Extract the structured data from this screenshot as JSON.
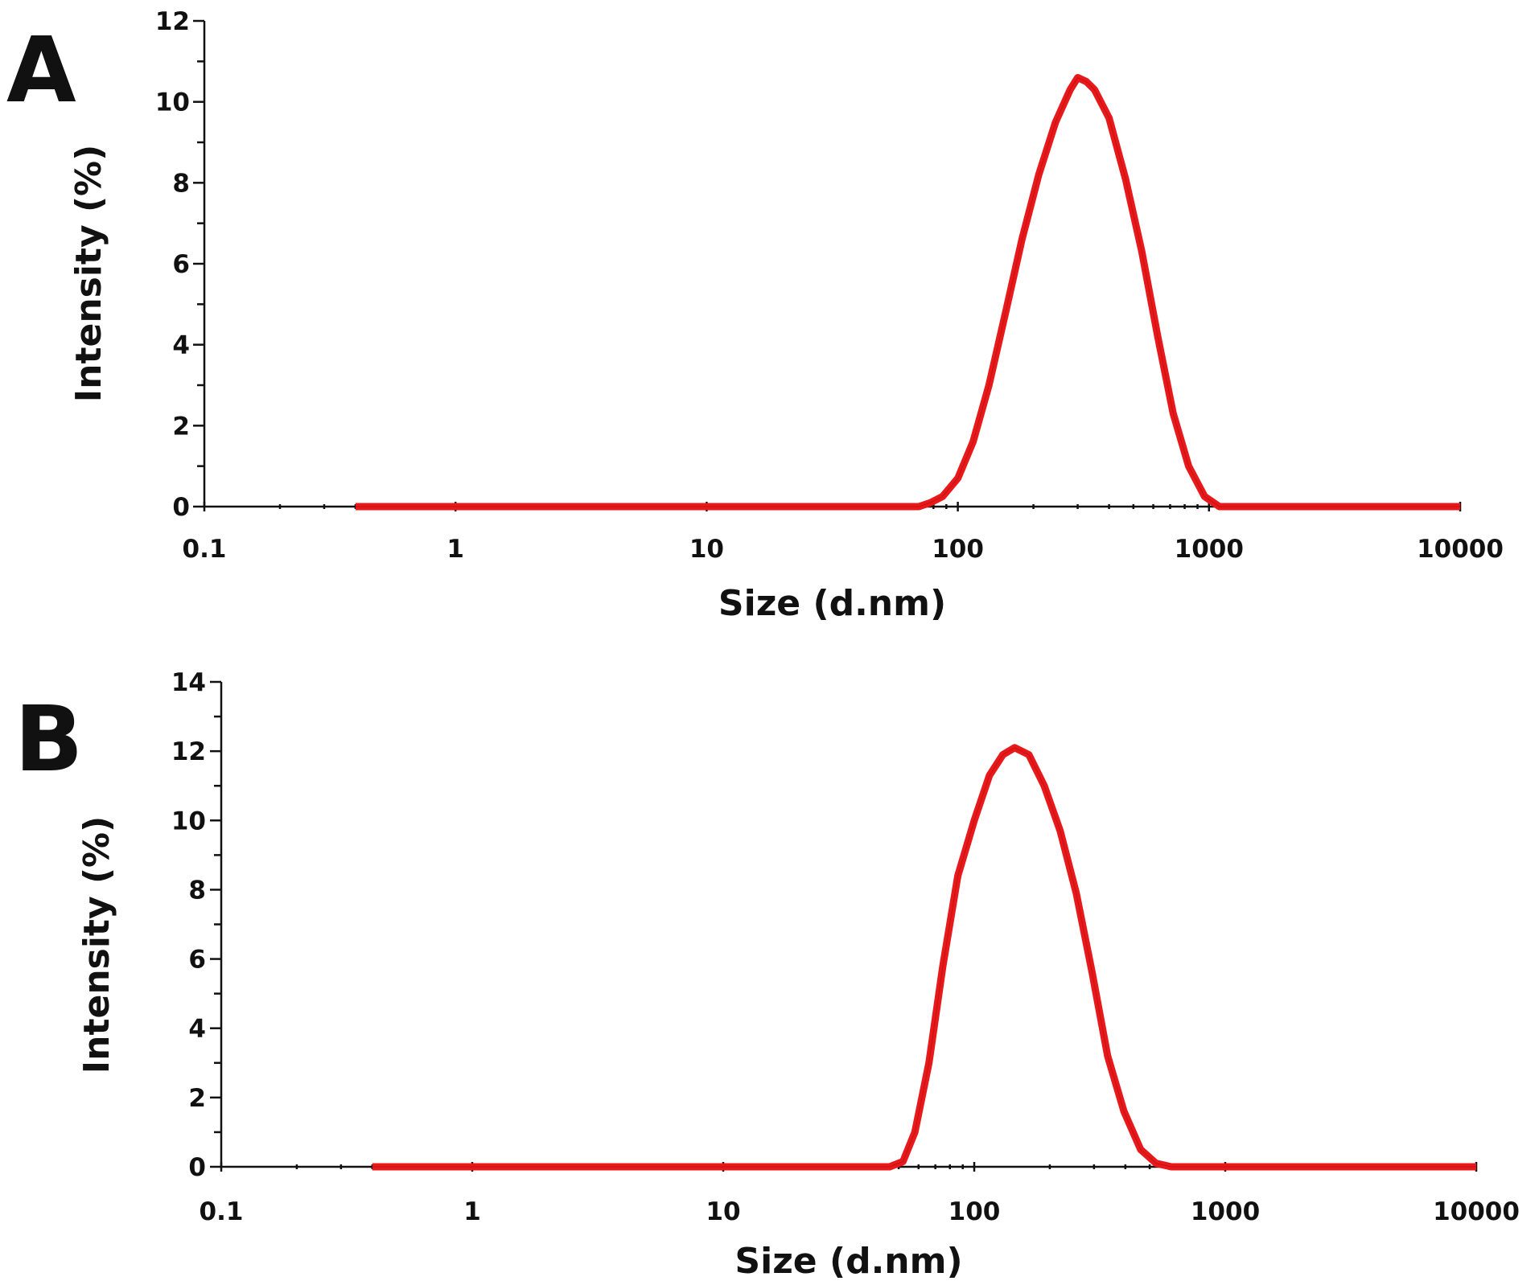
{
  "chart_data": [
    {
      "type": "line",
      "panel_label": "A",
      "xlabel": "Size (d.nm)",
      "ylabel": "Intensity (%)",
      "xscale": "log",
      "xlim": [
        0.1,
        10000
      ],
      "ylim": [
        0,
        12
      ],
      "xticks": [
        "0.1",
        "1",
        "10",
        "100",
        "1000",
        "10000"
      ],
      "yticks": [
        "0",
        "2",
        "4",
        "6",
        "8",
        "10",
        "12"
      ],
      "grid": false,
      "series": [
        {
          "name": "Intensity",
          "color": "#e8191b",
          "x": [
            0.4,
            10,
            60,
            70,
            78,
            87,
            100,
            115,
            133,
            155,
            180,
            210,
            245,
            280,
            300,
            325,
            350,
            400,
            465,
            540,
            625,
            720,
            830,
            960,
            1100,
            1280,
            2000,
            5000,
            10000
          ],
          "y": [
            0,
            0,
            0,
            0,
            0.1,
            0.25,
            0.7,
            1.6,
            3.0,
            4.8,
            6.6,
            8.2,
            9.5,
            10.3,
            10.6,
            10.5,
            10.3,
            9.6,
            8.1,
            6.3,
            4.2,
            2.3,
            1.0,
            0.25,
            0,
            0,
            0,
            0,
            0
          ]
        }
      ]
    },
    {
      "type": "line",
      "panel_label": "B",
      "xlabel": "Size (d.nm)",
      "ylabel": "Intensity (%)",
      "xscale": "log",
      "xlim": [
        0.1,
        10000
      ],
      "ylim": [
        0,
        14
      ],
      "xticks": [
        "0.1",
        "1",
        "10",
        "100",
        "1000",
        "10000"
      ],
      "yticks": [
        "0",
        "2",
        "4",
        "6",
        "8",
        "10",
        "12",
        "14"
      ],
      "grid": false,
      "series": [
        {
          "name": "Intensity",
          "color": "#e8191b",
          "x": [
            0.4,
            10,
            46,
            52,
            58,
            66,
            75,
            86,
            100,
            115,
            130,
            145,
            165,
            190,
            220,
            255,
            295,
            340,
            395,
            460,
            530,
            610,
            1000,
            5000,
            10000
          ],
          "y": [
            0,
            0,
            0,
            0.15,
            1.0,
            3.0,
            5.8,
            8.4,
            10.0,
            11.3,
            11.9,
            12.1,
            11.9,
            11.0,
            9.7,
            7.9,
            5.6,
            3.2,
            1.6,
            0.5,
            0.1,
            0,
            0,
            0,
            0
          ]
        }
      ]
    }
  ]
}
